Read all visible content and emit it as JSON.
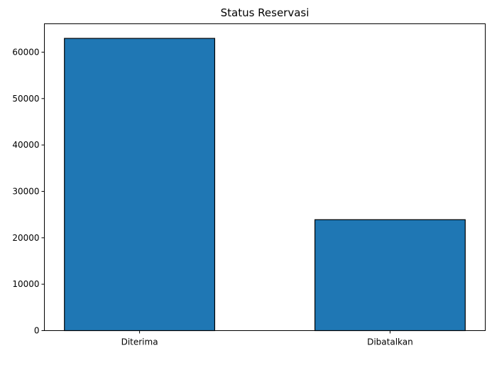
{
  "chart_data": {
    "type": "bar",
    "title": "Status Reservasi",
    "categories": [
      "Diterima",
      "Dibatalkan"
    ],
    "values": [
      62966,
      23900
    ],
    "xlabel": "",
    "ylabel": "",
    "ylim": [
      0,
      66110
    ],
    "yticks": [
      0,
      10000,
      20000,
      30000,
      40000,
      50000,
      60000
    ],
    "grid": false,
    "legend": "none",
    "colors": {
      "bar": "#1f77b4",
      "bar_edge": "#000000",
      "axis": "#000000",
      "text": "#000000"
    }
  }
}
